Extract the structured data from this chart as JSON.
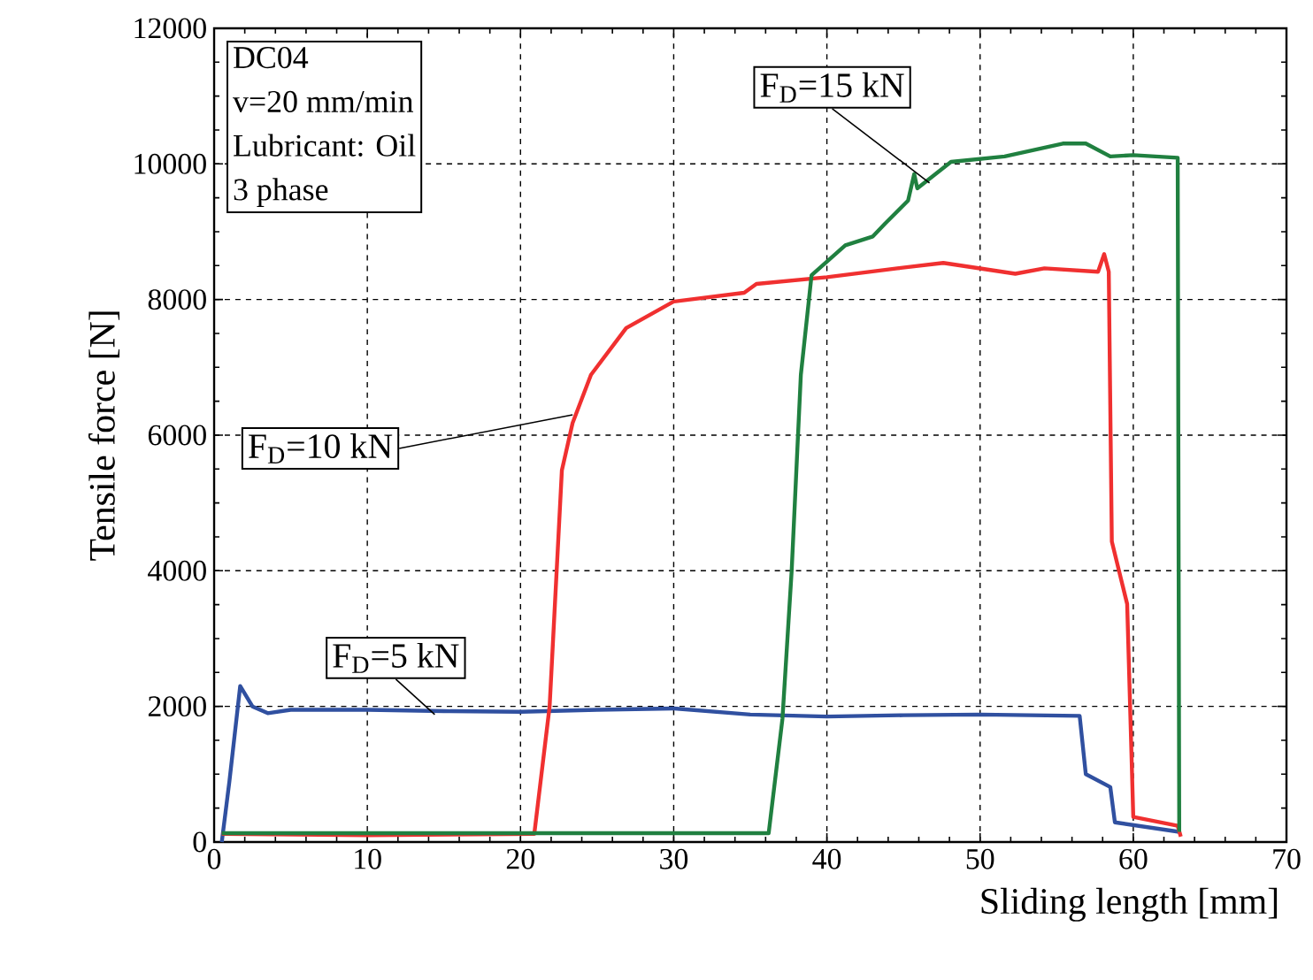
{
  "chart_data": {
    "type": "line",
    "xlabel": "Sliding length [mm]",
    "ylabel": "Tensile force [N]",
    "xlim": [
      0,
      70
    ],
    "ylim": [
      0,
      12000
    ],
    "xticks": [
      0,
      10,
      20,
      30,
      40,
      50,
      60,
      70
    ],
    "yticks": [
      0,
      2000,
      4000,
      6000,
      8000,
      10000,
      12000
    ],
    "grid": true,
    "legend": false,
    "line_style": "solid",
    "marker": "none",
    "annotations": [
      "DC04",
      "v=20 mm/min",
      "Lubricant: Oil",
      "3 phase",
      {
        "text": "F$_{D}$=5 kN",
        "x": 14.4,
        "y": 1880
      },
      {
        "text": "F$_{D}$=10 kN",
        "x": 23.4,
        "y": 6300
      },
      {
        "text": "F$_{D}$=15 kN",
        "x": 46.7,
        "y": 9720
      }
    ],
    "series": [
      {
        "color": "#3050a0",
        "x": [
          0.5,
          1.0,
          1.7,
          2.5,
          3.5,
          5,
          10,
          15,
          20,
          25,
          30,
          35,
          40,
          45,
          50,
          56.5,
          56.9,
          58.5,
          58.8,
          63
        ],
        "values": [
          0,
          900,
          2300,
          2000,
          1900,
          1950,
          1950,
          1930,
          1920,
          1950,
          1970,
          1880,
          1850,
          1870,
          1880,
          1860,
          1000,
          810,
          290,
          150
        ]
      },
      {
        "color": "#f03030",
        "x": [
          0.5,
          10,
          20.9,
          21.9,
          22.7,
          23.4,
          24.6,
          26.9,
          30,
          34.6,
          35.4,
          40,
          44.6,
          47.6,
          52.3,
          54.2,
          57.7,
          58.1,
          58.4,
          58.6,
          59.6,
          60,
          62.9,
          63.1
        ],
        "values": [
          120,
          100,
          120,
          2000,
          5480,
          6180,
          6890,
          7580,
          7970,
          8100,
          8230,
          8330,
          8460,
          8540,
          8380,
          8460,
          8410,
          8670,
          8410,
          4430,
          3510,
          370,
          240,
          80
        ]
      },
      {
        "color": "#208040",
        "x": [
          0.5,
          20,
          36.2,
          37.1,
          37.7,
          38.3,
          39,
          41.2,
          43,
          43.8,
          45.3,
          45.7,
          45.9,
          48.1,
          51.6,
          55.4,
          56.9,
          58.5,
          60,
          62.9,
          63
        ],
        "values": [
          130,
          130,
          130,
          1820,
          4000,
          6890,
          8360,
          8800,
          8930,
          9120,
          9460,
          9850,
          9640,
          10030,
          10110,
          10300,
          10300,
          10110,
          10130,
          10090,
          150
        ]
      }
    ]
  }
}
